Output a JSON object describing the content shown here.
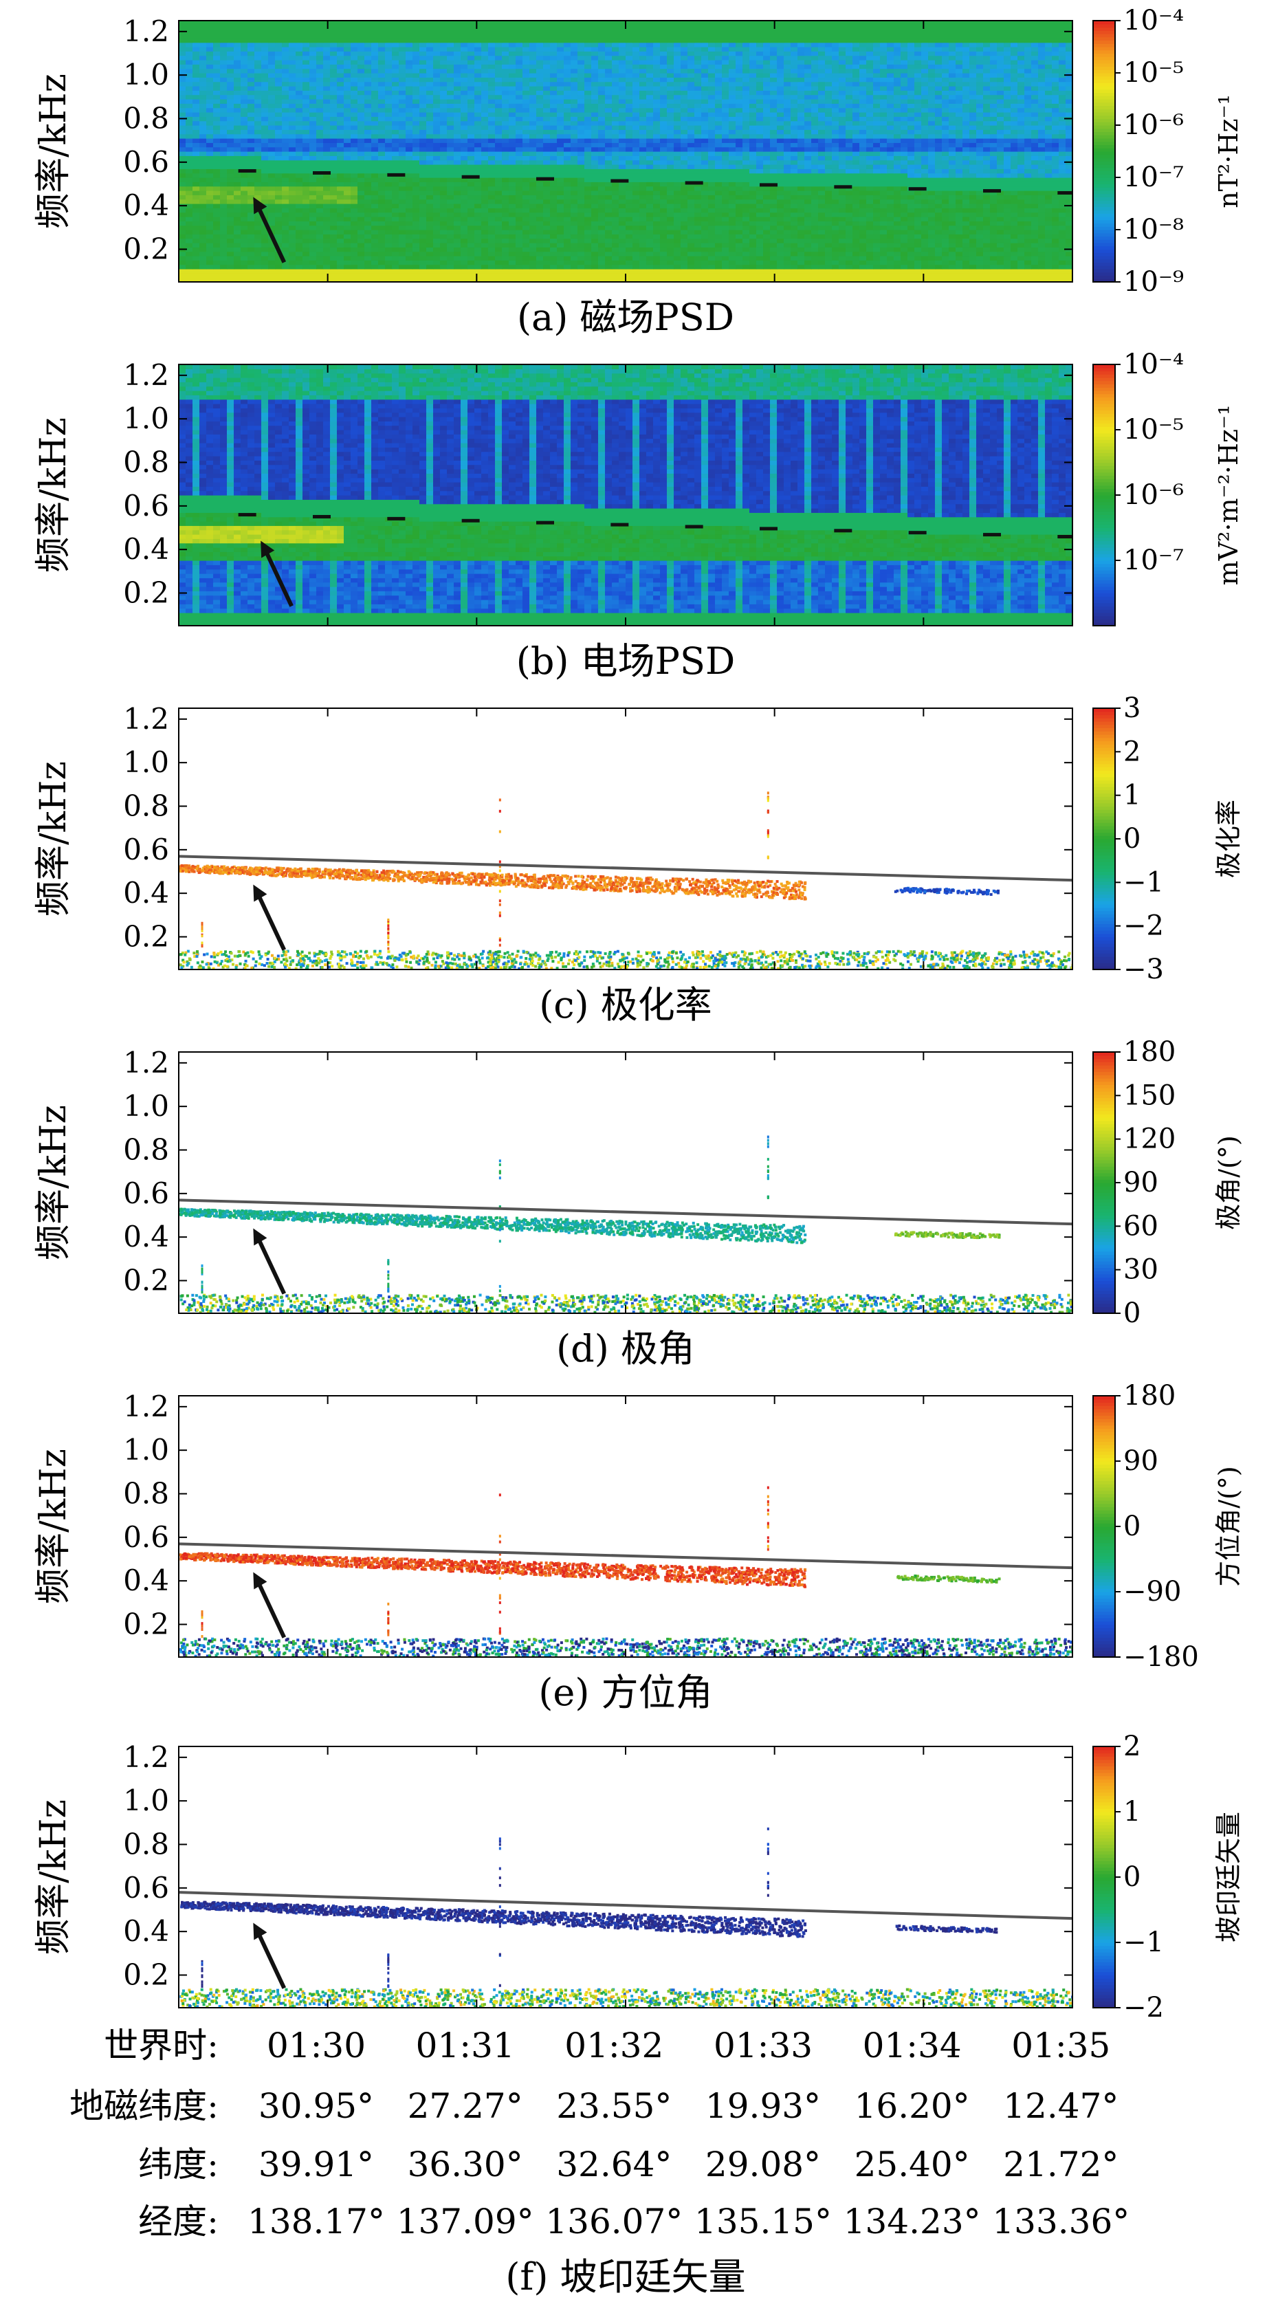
{
  "colors": {
    "jet": [
      "#2a2a86",
      "#1b4fd6",
      "#1aa3e6",
      "#19b46f",
      "#2aa832",
      "#9acb2a",
      "#f2e81e",
      "#f59a1e",
      "#e2251f"
    ],
    "arrow": "#111111",
    "cutoff_line": "#555555"
  },
  "chart_data": [
    {
      "type": "heatmap",
      "key": "a",
      "caption": "(a) 磁场PSD",
      "ylabel": "频率/kHz",
      "yticks": [
        "0.2",
        "0.4",
        "0.6",
        "0.8",
        "1.0",
        "1.2"
      ],
      "ylim": [
        0.05,
        1.25
      ],
      "xlim": [
        0,
        6
      ],
      "colorbar": {
        "label": "nT²·Hz⁻¹",
        "scale": "log",
        "range": [
          1e-09,
          0.0001
        ],
        "ticks": [
          "10⁻⁹",
          "10⁻⁸",
          "10⁻⁷",
          "10⁻⁶",
          "10⁻⁵",
          "10⁻⁴"
        ]
      },
      "arrow_target": {
        "t": 0.5,
        "f": 0.44
      }
    },
    {
      "type": "heatmap",
      "key": "b",
      "caption": "(b) 电场PSD",
      "ylabel": "频率/kHz",
      "yticks": [
        "0.2",
        "0.4",
        "0.6",
        "0.8",
        "1.0",
        "1.2"
      ],
      "ylim": [
        0.05,
        1.25
      ],
      "xlim": [
        0,
        6
      ],
      "colorbar": {
        "label": "mV²·m⁻²·Hz⁻¹",
        "scale": "log",
        "range": [
          1e-08,
          0.0001
        ],
        "ticks": [
          "10⁻⁷",
          "10⁻⁶",
          "10⁻⁵",
          "10⁻⁴"
        ]
      },
      "arrow_target": {
        "t": 0.55,
        "f": 0.44
      }
    },
    {
      "type": "scatter",
      "key": "c",
      "caption": "(c) 极化率",
      "ylabel": "频率/kHz",
      "yticks": [
        "0.2",
        "0.4",
        "0.6",
        "0.8",
        "1.0",
        "1.2"
      ],
      "ylim": [
        0.05,
        1.25
      ],
      "xlim": [
        0,
        6
      ],
      "colorbar": {
        "label": "极化率",
        "scale": "linear",
        "range": [
          -3,
          3
        ],
        "ticks": [
          "−3",
          "−2",
          "−1",
          "0",
          "1",
          "2",
          "3"
        ]
      },
      "cutoff_line": [
        [
          0,
          0.57
        ],
        [
          6,
          0.46
        ]
      ],
      "band_value": 2.4,
      "tail_value": -2.3,
      "low_value": 0,
      "arrow_target": {
        "t": 0.5,
        "f": 0.44
      }
    },
    {
      "type": "scatter",
      "key": "d",
      "caption": "(d) 极角",
      "ylabel": "频率/kHz",
      "yticks": [
        "0.2",
        "0.4",
        "0.6",
        "0.8",
        "1.0",
        "1.2"
      ],
      "ylim": [
        0.05,
        1.25
      ],
      "xlim": [
        0,
        6
      ],
      "colorbar": {
        "label": "极角/(°)",
        "scale": "linear",
        "range": [
          0,
          180
        ],
        "ticks": [
          "0",
          "30",
          "60",
          "90",
          "120",
          "150",
          "180"
        ]
      },
      "cutoff_line": [
        [
          0,
          0.57
        ],
        [
          6,
          0.46
        ]
      ],
      "band_value": 60,
      "tail_value": 105,
      "low_value": 80,
      "arrow_target": {
        "t": 0.5,
        "f": 0.44
      }
    },
    {
      "type": "scatter",
      "key": "e",
      "caption": "(e) 方位角",
      "ylabel": "频率/kHz",
      "yticks": [
        "0.2",
        "0.4",
        "0.6",
        "0.8",
        "1.0",
        "1.2"
      ],
      "ylim": [
        0.05,
        1.25
      ],
      "xlim": [
        0,
        6
      ],
      "colorbar": {
        "label": "方位角/(°)",
        "scale": "linear",
        "range": [
          -180,
          180
        ],
        "ticks": [
          "−180",
          "−90",
          "0",
          "90",
          "180"
        ]
      },
      "cutoff_line": [
        [
          0,
          0.57
        ],
        [
          6,
          0.46
        ]
      ],
      "band_value": 165,
      "tail_value": 20,
      "low_value": -100,
      "arrow_target": {
        "t": 0.5,
        "f": 0.44
      }
    },
    {
      "type": "scatter",
      "key": "f",
      "caption": "(f) 坡印廷矢量",
      "ylabel": "频率/kHz",
      "yticks": [
        "0.2",
        "0.4",
        "0.6",
        "0.8",
        "1.0",
        "1.2"
      ],
      "ylim": [
        0.05,
        1.25
      ],
      "xlim": [
        0,
        6
      ],
      "colorbar": {
        "label": "坡印廷矢量",
        "scale": "linear",
        "range": [
          -2,
          2
        ],
        "ticks": [
          "−2",
          "−1",
          "0",
          "1",
          "2"
        ]
      },
      "cutoff_line": [
        [
          0,
          0.58
        ],
        [
          6,
          0.46
        ]
      ],
      "band_value": -1.9,
      "tail_value": -1.9,
      "low_value": 0,
      "arrow_target": {
        "t": 0.5,
        "f": 0.44
      }
    }
  ],
  "x_axis_table": {
    "times": [
      0,
      1,
      2,
      3,
      4,
      5
    ],
    "rows": [
      {
        "label": "世界时:",
        "values": [
          "01:30",
          "01:31",
          "01:32",
          "01:33",
          "01:34",
          "01:35"
        ]
      },
      {
        "label": "地磁纬度:",
        "values": [
          "30.95°",
          "27.27°",
          "23.55°",
          "19.93°",
          "16.20°",
          "12.47°"
        ]
      },
      {
        "label": "纬度:",
        "values": [
          "39.91°",
          "36.30°",
          "32.64°",
          "29.08°",
          "25.40°",
          "21.72°"
        ]
      },
      {
        "label": "经度:",
        "values": [
          "138.17°",
          "137.09°",
          "136.07°",
          "135.15°",
          "134.23°",
          "133.36°"
        ]
      }
    ]
  }
}
